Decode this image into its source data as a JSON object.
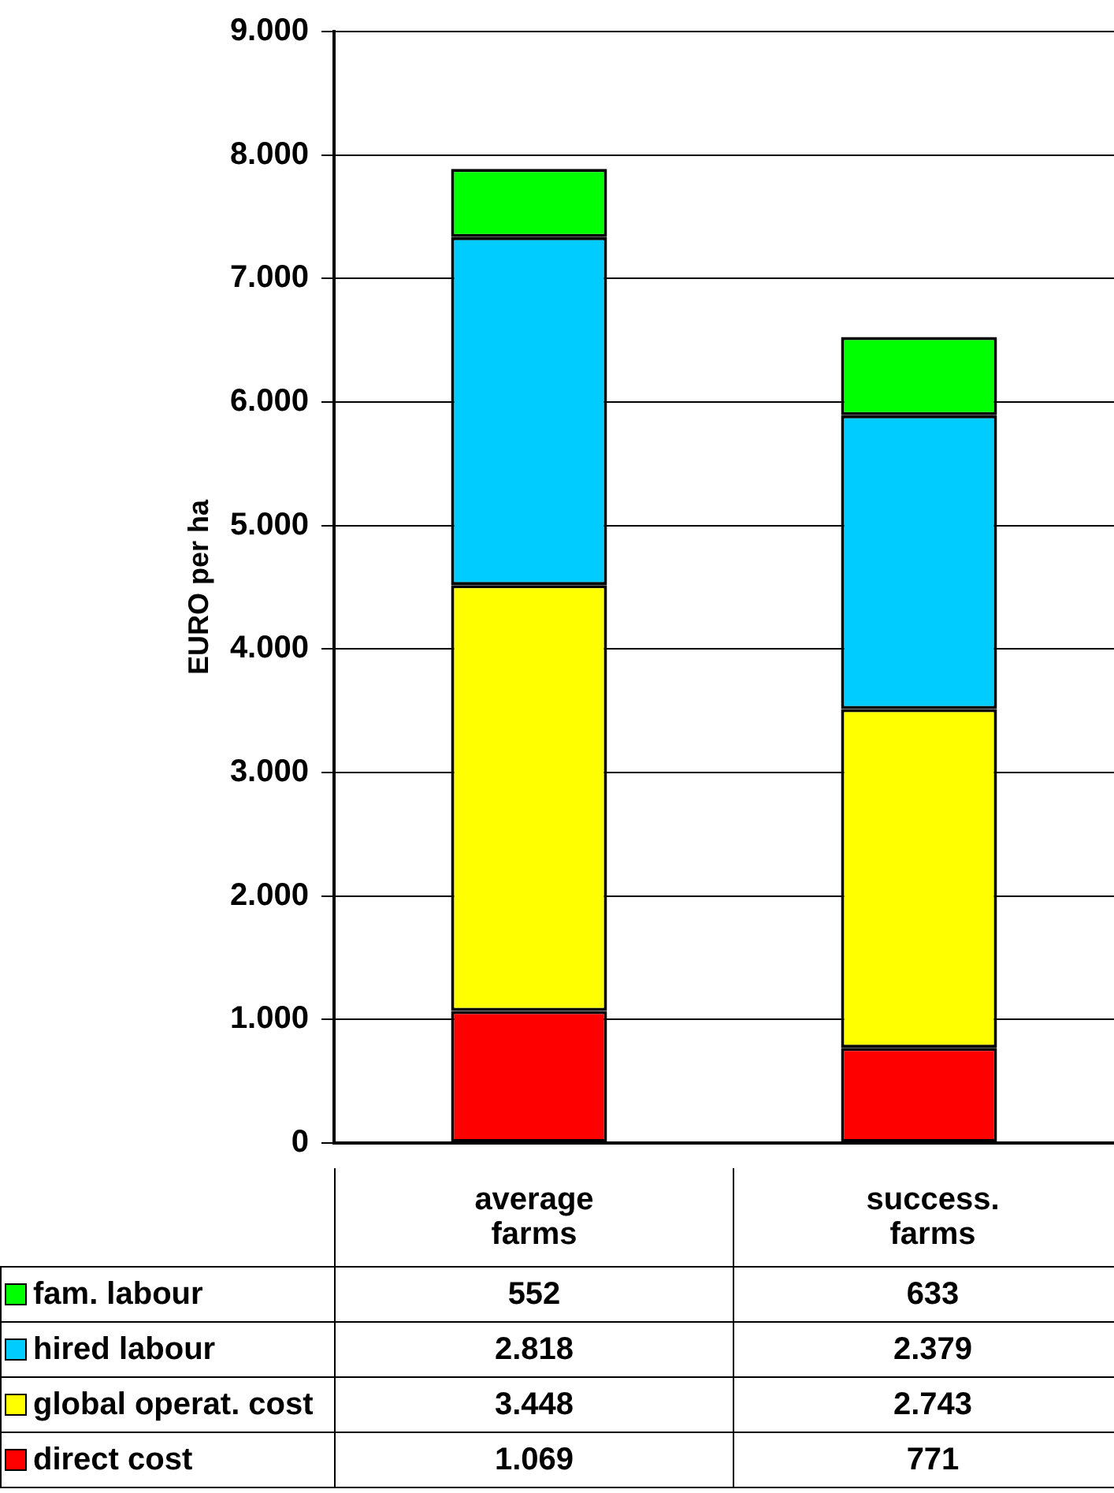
{
  "chart_data": {
    "type": "bar",
    "stacked": true,
    "ylabel": "EURO per ha",
    "categories": [
      "average farms",
      "success. farms"
    ],
    "series": [
      {
        "name": "direct cost",
        "color": "#ff0000",
        "values": [
          1069,
          771
        ],
        "value_labels": [
          "1.069",
          "771"
        ]
      },
      {
        "name": "global operat. cost",
        "color": "#ffff00",
        "values": [
          3448,
          2743
        ],
        "value_labels": [
          "3.448",
          "2.743"
        ]
      },
      {
        "name": "hired labour",
        "color": "#00ccff",
        "values": [
          2818,
          2379
        ],
        "value_labels": [
          "2.818",
          "2.379"
        ]
      },
      {
        "name": "fam. labour",
        "color": "#00ff00",
        "values": [
          552,
          633
        ],
        "value_labels": [
          "552",
          "633"
        ]
      }
    ],
    "ylim": [
      0,
      9000
    ],
    "yticks": [
      {
        "value": 0,
        "label": "0"
      },
      {
        "value": 1000,
        "label": "1.000"
      },
      {
        "value": 2000,
        "label": "2.000"
      },
      {
        "value": 3000,
        "label": "3.000"
      },
      {
        "value": 4000,
        "label": "4.000"
      },
      {
        "value": 5000,
        "label": "5.000"
      },
      {
        "value": 6000,
        "label": "6.000"
      },
      {
        "value": 7000,
        "label": "7.000"
      },
      {
        "value": 8000,
        "label": "8.000"
      },
      {
        "value": 9000,
        "label": "9.000"
      }
    ],
    "grid": "y",
    "legend": "bottom left"
  }
}
